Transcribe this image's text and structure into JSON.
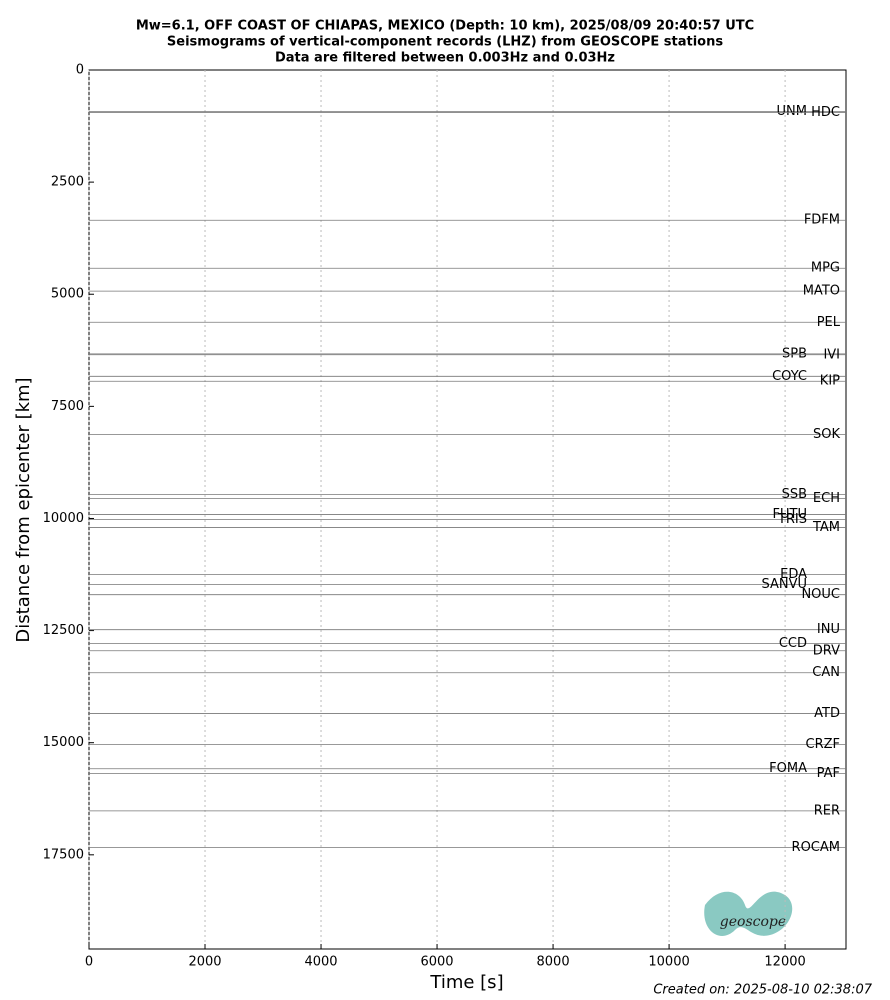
{
  "chart_data": {
    "type": "record_section",
    "title_lines": [
      "Mw=6.1, OFF COAST OF CHIAPAS, MEXICO (Depth: 10 km), 2025/08/09 20:40:57 UTC",
      "Seismograms of vertical-component records (LHZ) from GEOSCOPE stations",
      "Data are filtered between 0.003Hz and 0.03Hz"
    ],
    "xlabel": "Time [s]",
    "ylabel": "Distance from epicenter [km]",
    "xlim": [
      0,
      13050
    ],
    "ylim": [
      0,
      19600
    ],
    "y_inverted": true,
    "xticks": [
      0,
      2000,
      4000,
      6000,
      8000,
      10000,
      12000
    ],
    "yticks": [
      0,
      2500,
      5000,
      7500,
      10000,
      12500,
      15000,
      17500
    ],
    "grid": true,
    "trace_color": "#777777",
    "stations": [
      "UNM",
      "HDC",
      "FDFM",
      "MPG",
      "MATO",
      "PEL",
      "SPB",
      "IVI",
      "COYC",
      "KIP",
      "SOK",
      "SSB",
      "ECH",
      "FUTU",
      "TRIS",
      "TAM",
      "EDA",
      "SANVU",
      "NOUC",
      "INU",
      "CCD",
      "DRV",
      "CAN",
      "ATD",
      "CRZF",
      "FOMA",
      "PAF",
      "RER",
      "ROCAM"
    ],
    "distances": [
      930,
      950,
      3350,
      4420,
      4930,
      5625,
      6330,
      6350,
      6830,
      6940,
      8125,
      9465,
      9555,
      9910,
      10020,
      10200,
      11250,
      11470,
      11700,
      12480,
      12790,
      12950,
      13440,
      14350,
      15040,
      15580,
      15690,
      16520,
      17340
    ],
    "footer": "Created on: 2025-08-10 02:38:07",
    "logo_text": "geoscope"
  }
}
